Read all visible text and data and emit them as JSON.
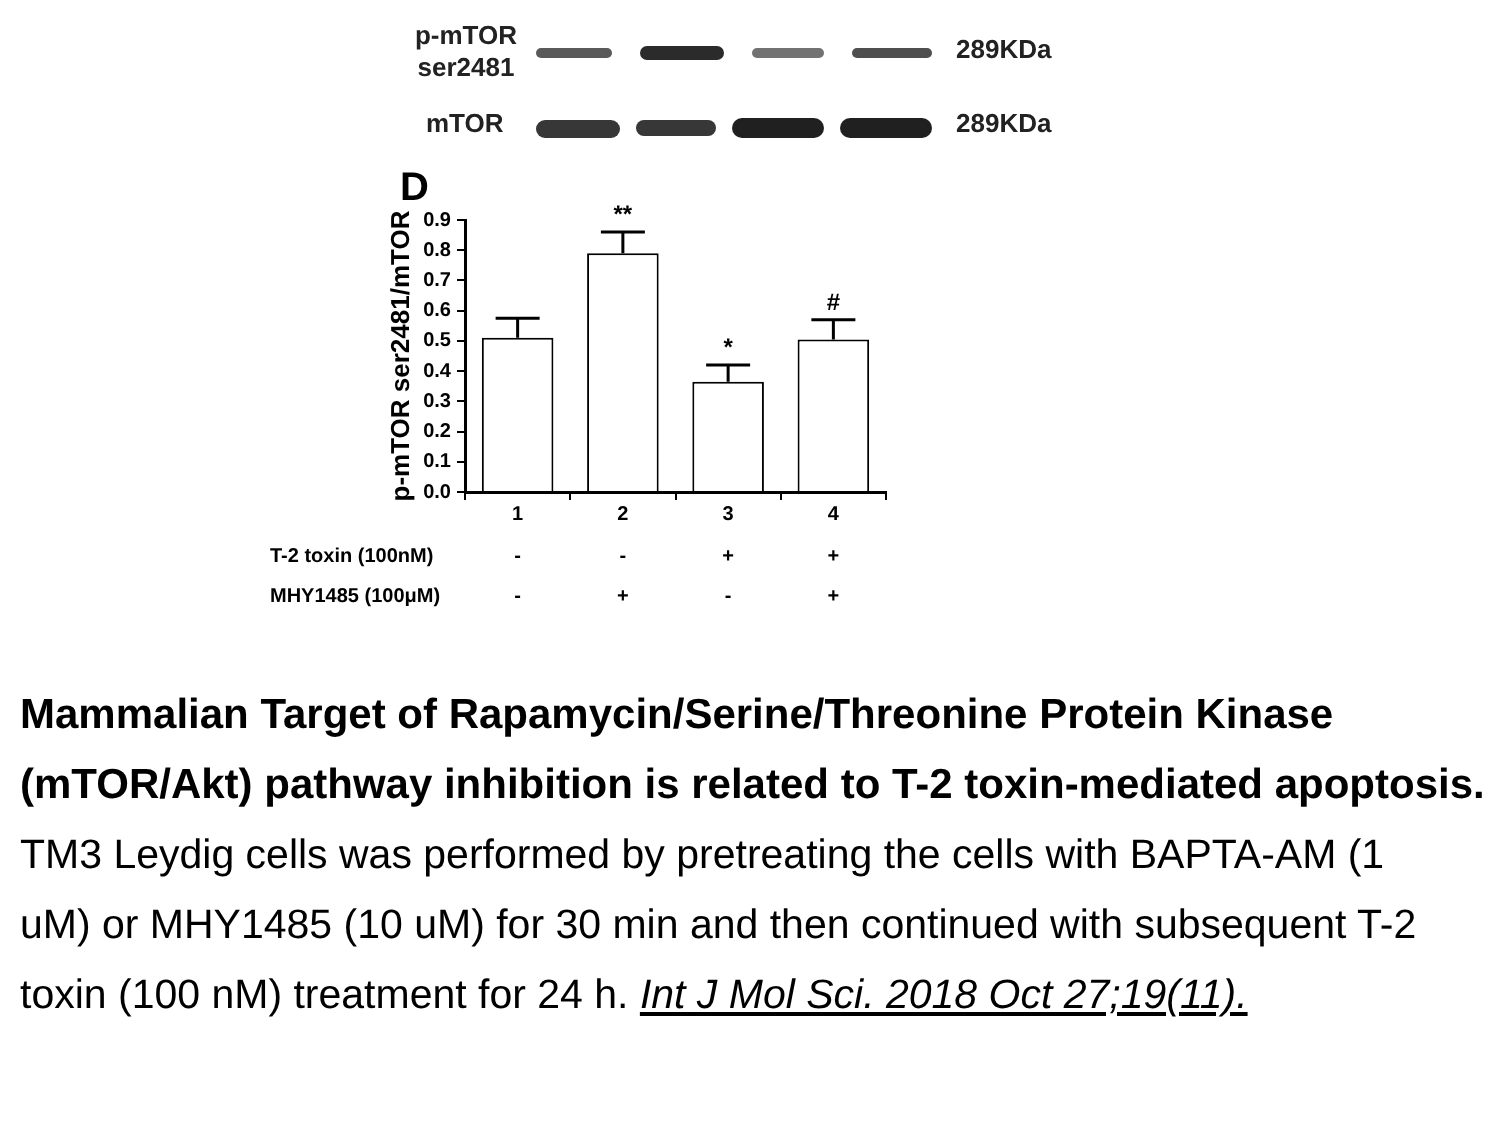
{
  "chart_data": {
    "type": "bar",
    "title": "Mammalian Target of Rapamycin/Serine/Threonine Protein Kinase (mTOR/Akt) pathway inhibition is related to T-2 toxin-mediated apoptosis.",
    "ylabel": "p-mTOR ser2481/mTOR",
    "categories": [
      "1",
      "2",
      "3",
      "4"
    ],
    "values": [
      0.51,
      0.79,
      0.365,
      0.505
    ],
    "errors": [
      [
        0.51,
        0.575
      ],
      [
        0.79,
        0.86
      ],
      [
        0.365,
        0.42
      ],
      [
        0.505,
        0.57
      ]
    ],
    "color": "#ffffff",
    "ylim": [
      0,
      0.9
    ],
    "yticks": [
      {
        "value": 0,
        "label": "0.0"
      },
      0.1,
      0.2,
      0.3,
      0.4,
      0.5,
      0.6,
      0.7,
      0.8,
      0.9
    ],
    "grid": false,
    "legend": false,
    "annotations": [
      "D",
      "p-mTOR ser2481",
      "289KDa",
      "mTOR",
      "289KDa",
      "T-2 toxin (100nM)",
      "-",
      "-",
      "+",
      "+",
      "MHY1485 (100μM)",
      "-",
      "+",
      "-",
      "+",
      {
        "text": "**",
        "x": "2",
        "y": 0.86
      },
      {
        "text": "*",
        "x": "3",
        "y": 0.42
      },
      {
        "text": "#",
        "x": "4",
        "y": 0.57
      },
      "TM3 Leydig cells was performed by pretreating the cells with BAPTA-AM (1 uM) or MHY1485 (10 uM) for 30 min and then continued with subsequent T-2 toxin (100 nM) treatment for 24 h.",
      "Int J Mol Sci. 2018 Oct 27;19(11)."
    ]
  }
}
